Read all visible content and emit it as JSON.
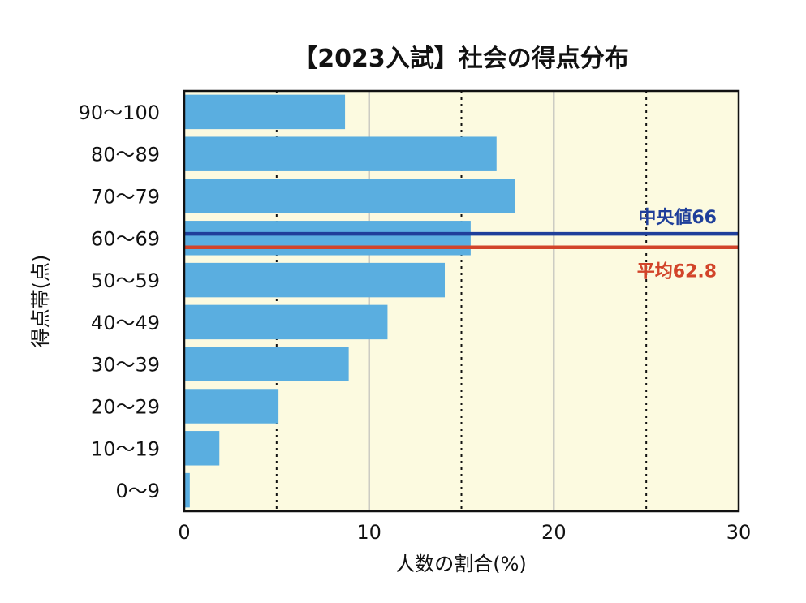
{
  "chart_data": {
    "type": "bar",
    "orientation": "horizontal",
    "title": "【2023入試】社会の得点分布",
    "xlabel": "人数の割合(%)",
    "ylabel": "得点帯(点)",
    "xlim": [
      0,
      30
    ],
    "xticks": [
      "0",
      "10",
      "20",
      "30"
    ],
    "categories": [
      "90〜100",
      "80〜89",
      "70〜79",
      "60〜69",
      "50〜59",
      "40〜49",
      "30〜39",
      "20〜29",
      "10〜19",
      "0〜9"
    ],
    "values": [
      8.7,
      16.9,
      17.9,
      15.5,
      14.1,
      11.0,
      8.9,
      5.1,
      1.9,
      0.3
    ],
    "reference_lines": [
      {
        "label": "中央値66",
        "score": 66,
        "color": "#1f3f9a"
      },
      {
        "label": "平均62.8",
        "score": 62.8,
        "color": "#d2442a"
      }
    ],
    "gridlines": {
      "solid_at": [
        10,
        20
      ],
      "dashed_at": [
        5,
        15,
        25
      ]
    },
    "colors": {
      "bar": "#5aaee0",
      "plot_bg": "#fcfae0",
      "axis": "#111111"
    }
  }
}
